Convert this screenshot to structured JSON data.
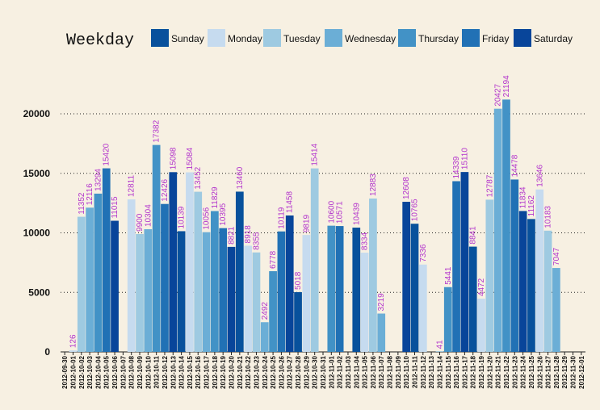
{
  "chart_data": {
    "type": "bar",
    "legend_title": "Weekday",
    "legend": [
      "Sunday",
      "Monday",
      "Tuesday",
      "Wednesday",
      "Thursday",
      "Friday",
      "Saturday"
    ],
    "weekday_colors": {
      "Sunday": "#08519c",
      "Monday": "#c6dbef",
      "Tuesday": "#9ecae1",
      "Wednesday": "#6baed6",
      "Thursday": "#4292c6",
      "Friday": "#2171b5",
      "Saturday": "#08459a"
    },
    "legend_position": "top",
    "grid": "horizontal dotted",
    "ylim": [
      0,
      23000
    ],
    "yticks": [
      0,
      5000,
      10000,
      15000,
      20000
    ],
    "data_label_color": "#b233cc",
    "categories": [
      "2012-09-30",
      "2012-10-01",
      "2012-10-02",
      "2012-10-03",
      "2012-10-04",
      "2012-10-05",
      "2012-10-06",
      "2012-10-07",
      "2012-10-08",
      "2012-10-09",
      "2012-10-10",
      "2012-10-11",
      "2012-10-12",
      "2012-10-13",
      "2012-10-14",
      "2012-10-15",
      "2012-10-16",
      "2012-10-17",
      "2012-10-18",
      "2012-10-19",
      "2012-10-20",
      "2012-10-21",
      "2012-10-22",
      "2012-10-23",
      "2012-10-24",
      "2012-10-25",
      "2012-10-26",
      "2012-10-27",
      "2012-10-28",
      "2012-10-29",
      "2012-10-30",
      "2012-10-31",
      "2012-11-01",
      "2012-11-02",
      "2012-11-03",
      "2012-11-04",
      "2012-11-05",
      "2012-11-06",
      "2012-11-07",
      "2012-11-08",
      "2012-11-09",
      "2012-11-10",
      "2012-11-11",
      "2012-11-12",
      "2012-11-13",
      "2012-11-14",
      "2012-11-15",
      "2012-11-16",
      "2012-11-17",
      "2012-11-18",
      "2012-11-19",
      "2012-11-20",
      "2012-11-21",
      "2012-11-22",
      "2012-11-23",
      "2012-11-24",
      "2012-11-25",
      "2012-11-26",
      "2012-11-27",
      "2012-11-28",
      "2012-11-29",
      "2012-11-30",
      "2012-12-01"
    ],
    "weekdays": [
      "Sunday",
      "Monday",
      "Tuesday",
      "Wednesday",
      "Thursday",
      "Friday",
      "Saturday",
      "Sunday",
      "Monday",
      "Tuesday",
      "Wednesday",
      "Thursday",
      "Friday",
      "Saturday",
      "Sunday",
      "Monday",
      "Tuesday",
      "Wednesday",
      "Thursday",
      "Friday",
      "Saturday",
      "Sunday",
      "Monday",
      "Tuesday",
      "Wednesday",
      "Thursday",
      "Friday",
      "Saturday",
      "Sunday",
      "Monday",
      "Tuesday",
      "Wednesday",
      "Thursday",
      "Friday",
      "Saturday",
      "Sunday",
      "Monday",
      "Tuesday",
      "Wednesday",
      "Thursday",
      "Friday",
      "Saturday",
      "Sunday",
      "Monday",
      "Tuesday",
      "Wednesday",
      "Thursday",
      "Friday",
      "Saturday",
      "Sunday",
      "Monday",
      "Tuesday",
      "Wednesday",
      "Thursday",
      "Friday",
      "Saturday",
      "Sunday",
      "Monday",
      "Tuesday",
      "Wednesday",
      "Thursday",
      "Friday",
      "Saturday"
    ],
    "values": [
      null,
      126,
      11352,
      12116,
      13294,
      15420,
      11015,
      null,
      12811,
      9900,
      10304,
      17382,
      12426,
      15098,
      10139,
      15084,
      13452,
      10056,
      11829,
      10395,
      8821,
      13460,
      8918,
      8355,
      2492,
      6778,
      10119,
      11458,
      5018,
      9819,
      15414,
      null,
      10600,
      10571,
      null,
      10439,
      8334,
      12883,
      3219,
      null,
      null,
      12608,
      10765,
      7336,
      null,
      41,
      5441,
      14339,
      15110,
      8841,
      4472,
      12787,
      20427,
      21194,
      14478,
      11834,
      11162,
      13646,
      10183,
      7047,
      null,
      null,
      null
    ]
  }
}
